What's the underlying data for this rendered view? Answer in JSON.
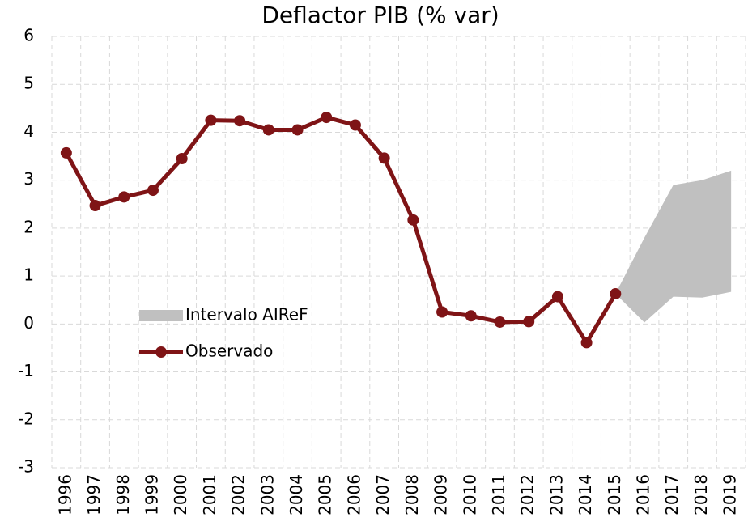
{
  "chart_data": {
    "type": "line",
    "title": "Deflactor PIB (% var)",
    "categories": [
      "1996",
      "1997",
      "1998",
      "1999",
      "2000",
      "2001",
      "2002",
      "2003",
      "2004",
      "2005",
      "2006",
      "2007",
      "2008",
      "2009",
      "2010",
      "2011",
      "2012",
      "2013",
      "2014",
      "2015",
      "2016",
      "2017",
      "2018",
      "2019"
    ],
    "series": [
      {
        "name": "Intervalo AIReF",
        "color": "#c0c0c0",
        "kind": "band",
        "lower": [
          null,
          null,
          null,
          null,
          null,
          null,
          null,
          null,
          null,
          null,
          null,
          null,
          null,
          null,
          null,
          null,
          null,
          null,
          null,
          0.63,
          0.03,
          0.57,
          0.55,
          0.67
        ],
        "upper": [
          null,
          null,
          null,
          null,
          null,
          null,
          null,
          null,
          null,
          null,
          null,
          null,
          null,
          null,
          null,
          null,
          null,
          null,
          null,
          0.63,
          1.8,
          2.9,
          3.0,
          3.2
        ]
      },
      {
        "name": "Observado",
        "color": "#7f1416",
        "kind": "line",
        "values": [
          3.57,
          2.47,
          2.65,
          2.79,
          3.45,
          4.25,
          4.24,
          4.05,
          4.05,
          4.31,
          4.15,
          3.46,
          2.17,
          0.25,
          0.17,
          0.04,
          0.05,
          0.57,
          -0.39,
          0.63,
          null,
          null,
          null,
          null
        ]
      }
    ],
    "ylim": [
      -3,
      6
    ],
    "yticks": [
      -3,
      -2,
      -1,
      0,
      1,
      2,
      3,
      4,
      5,
      6
    ],
    "grid": true
  }
}
